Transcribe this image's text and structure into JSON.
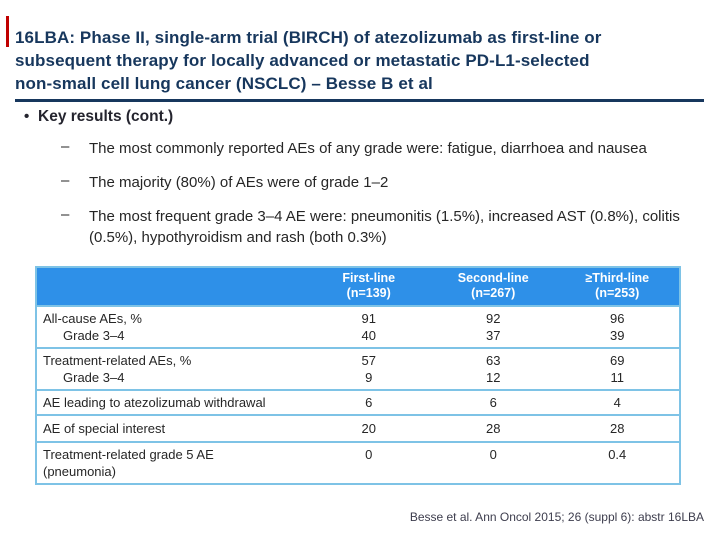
{
  "slide": {
    "accent_color_red": "#C00000",
    "title_color": "#17375D",
    "table_header_color": "#2E90E8",
    "table_border_color": "#7EC3E6",
    "title_lines": [
      "16LBA: Phase II, single-arm trial (BIRCH) of atezolizumab as first-line or",
      "subsequent therapy for locally advanced or metastatic PD-L1-selected",
      "non-small cell lung cancer (NSCLC) – Besse B et al"
    ],
    "key_results": {
      "bullet_glyph": "•",
      "heading": "Key results (cont.)",
      "dash_glyph": "–",
      "items": [
        "The most commonly reported AEs of any grade were: fatigue, diarrhoea and nausea",
        "The majority (80%) of AEs were of grade 1–2",
        "The most frequent grade 3–4 AE were: pneumonitis (1.5%), increased AST (0.8%), colitis (0.5%), hypothyroidism and rash (both 0.3%)"
      ]
    },
    "table": {
      "columns": [
        {
          "line1": "First-line",
          "line2": "(n=139)"
        },
        {
          "line1": "Second-line",
          "line2": "(n=267)"
        },
        {
          "line1": "≥Third-line",
          "line2": "(n=253)"
        }
      ],
      "rows": [
        {
          "label": "All-cause AEs, %",
          "label2": "Grade 3–4",
          "c1": "91",
          "c1b": "40",
          "c2": "92",
          "c2b": "37",
          "c3": "96",
          "c3b": "39"
        },
        {
          "label": "Treatment-related AEs, %",
          "label2": "Grade 3–4",
          "c1": "57",
          "c1b": "9",
          "c2": "63",
          "c2b": "12",
          "c3": "69",
          "c3b": "11"
        },
        {
          "label": "AE leading to atezolizumab withdrawal",
          "c1": "6",
          "c2": "6",
          "c3": "4"
        },
        {
          "label": "AE of special interest",
          "c1": "20",
          "c2": "28",
          "c3": "28"
        },
        {
          "label": "Treatment-related grade 5 AE",
          "label2": "(pneumonia)",
          "c1": "0",
          "c2": "0",
          "c3": "0.4"
        }
      ]
    },
    "footer_citation": "Besse et al. Ann Oncol 2015; 26 (suppl 6): abstr 16LBA"
  }
}
